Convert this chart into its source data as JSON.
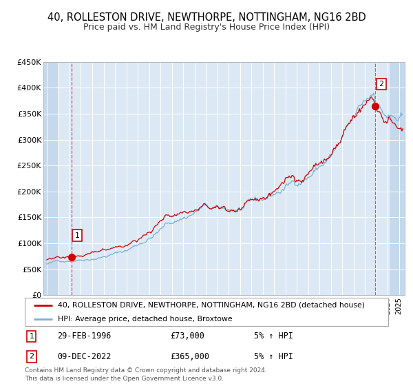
{
  "title": "40, ROLLESTON DRIVE, NEWTHORPE, NOTTINGHAM, NG16 2BD",
  "subtitle": "Price paid vs. HM Land Registry's House Price Index (HPI)",
  "title_fontsize": 10.5,
  "subtitle_fontsize": 9,
  "bg_color": "#dce9f5",
  "hatch_color": "#c5d8ec",
  "grid_color": "#ffffff",
  "red_line_color": "#cc0000",
  "blue_line_color": "#7bafd4",
  "sale1_date_num": 1996.16,
  "sale1_price": 73000,
  "sale2_date_num": 2022.92,
  "sale2_price": 365000,
  "legend_label_red": "40, ROLLESTON DRIVE, NEWTHORPE, NOTTINGHAM, NG16 2BD (detached house)",
  "legend_label_blue": "HPI: Average price, detached house, Broxtowe",
  "note1_label": "1",
  "note1_date": "29-FEB-1996",
  "note1_price": "£73,000",
  "note1_hpi": "5% ↑ HPI",
  "note2_label": "2",
  "note2_date": "09-DEC-2022",
  "note2_price": "£365,000",
  "note2_hpi": "5% ↑ HPI",
  "footer": "Contains HM Land Registry data © Crown copyright and database right 2024.\nThis data is licensed under the Open Government Licence v3.0.",
  "ylim": [
    0,
    450000
  ],
  "yticks": [
    0,
    50000,
    100000,
    150000,
    200000,
    250000,
    300000,
    350000,
    400000,
    450000
  ],
  "ytick_labels": [
    "£0",
    "£50K",
    "£100K",
    "£150K",
    "£200K",
    "£250K",
    "£300K",
    "£350K",
    "£400K",
    "£450K"
  ],
  "xlim_start": 1993.7,
  "xlim_end": 2025.5,
  "hatch_left_end": 1995.0,
  "hatch_right_start": 2024.2
}
